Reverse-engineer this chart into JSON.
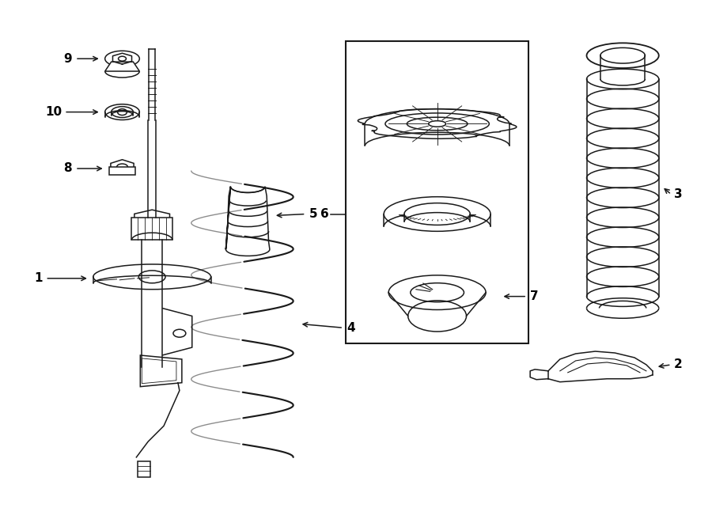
{
  "bg_color": "#ffffff",
  "line_color": "#1a1a1a",
  "fig_width": 9.0,
  "fig_height": 6.61,
  "dpi": 100,
  "lw": 1.1,
  "label_fs": 11
}
